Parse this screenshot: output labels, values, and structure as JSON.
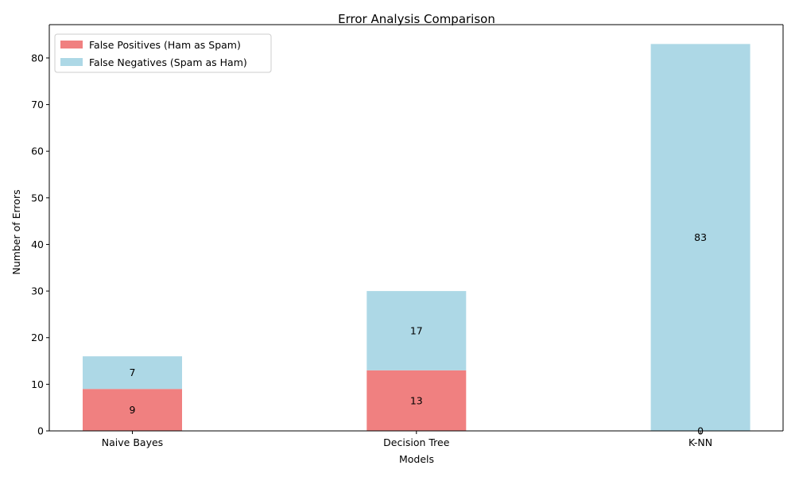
{
  "chart_data": {
    "type": "bar",
    "stacked": true,
    "title": "Error Analysis Comparison",
    "xlabel": "Models",
    "ylabel": "Number of Errors",
    "categories": [
      "Naive Bayes",
      "Decision Tree",
      "K-NN"
    ],
    "series": [
      {
        "name": "False Positives (Ham as Spam)",
        "values": [
          9,
          13,
          0
        ],
        "color": "#f08080"
      },
      {
        "name": "False Negatives (Spam as Ham)",
        "values": [
          7,
          17,
          83
        ],
        "color": "#add8e6"
      }
    ],
    "ylim": [
      0,
      87.15
    ],
    "yticks": [
      0,
      10,
      20,
      30,
      40,
      50,
      60,
      70,
      80
    ],
    "grid": false,
    "legend_position": "top-left"
  }
}
